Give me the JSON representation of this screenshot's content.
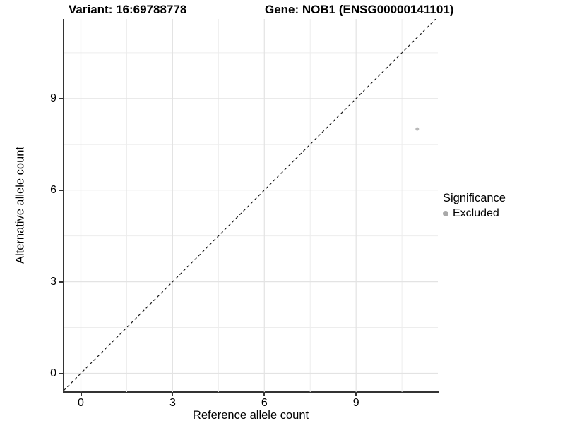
{
  "titles": {
    "variant": "Variant: 16:69788778",
    "gene": "Gene: NOB1 (ENSG00000141101)"
  },
  "axes": {
    "x": {
      "label": "Reference allele count",
      "tick_labels": [
        "0",
        "3",
        "6",
        "9"
      ]
    },
    "y": {
      "label": "Alternative allele count",
      "tick_labels": [
        "0",
        "3",
        "6",
        "9"
      ]
    }
  },
  "legend": {
    "title": "Significance",
    "items": [
      {
        "label": "Excluded",
        "color": "#b3b3b3"
      }
    ],
    "position": "right"
  },
  "colors": {
    "background": "#ffffff",
    "point": "#b9b9b9",
    "legend_key": "#a9a9a9",
    "grid_major": "#e3e3e3",
    "grid_minor": "#ededed",
    "axis_line": "#333333",
    "reference_line": "#1a1a1a",
    "text": "#000000"
  },
  "chart_data": {
    "type": "scatter",
    "title": "Variant: 16:69788778   |   Gene: NOB1 (ENSG00000141101)",
    "xlabel": "Reference allele count",
    "ylabel": "Alternative allele count",
    "points": [
      {
        "x": 11,
        "y": 8,
        "series": "Excluded"
      }
    ],
    "series": [
      {
        "name": "Excluded",
        "color": "#b9b9b9"
      }
    ],
    "xlim": [
      -0.566,
      11.675
    ],
    "ylim": [
      -0.612,
      11.605
    ],
    "x_breaks": [
      0,
      3,
      6,
      9
    ],
    "y_breaks": [
      0,
      3,
      6,
      9
    ],
    "x_minor_breaks": [
      1.5,
      4.5,
      7.5,
      10.5
    ],
    "y_minor_breaks": [
      1.5,
      4.5,
      7.5,
      10.5
    ],
    "reference_line": {
      "slope": 1,
      "intercept": 0,
      "style": "dashed"
    },
    "grid": true,
    "legend_position": "right",
    "aspect": "equal"
  }
}
